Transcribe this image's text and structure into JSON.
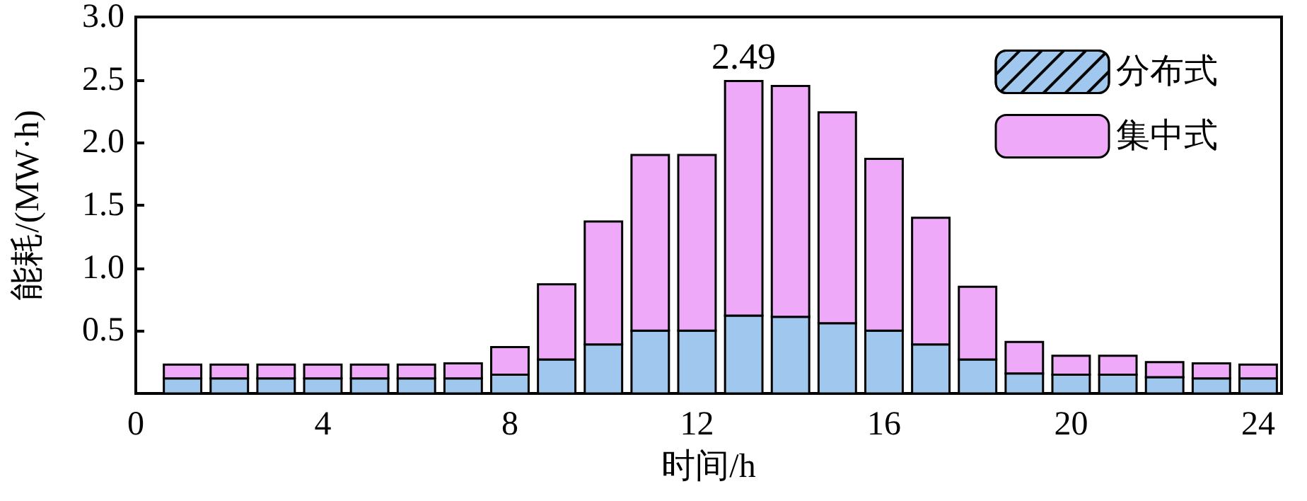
{
  "chart_data": {
    "type": "bar",
    "stacked": true,
    "xlabel": "时间/h",
    "ylabel": "能耗/(MW·h)",
    "x": [
      1,
      2,
      3,
      4,
      5,
      6,
      7,
      8,
      9,
      10,
      11,
      12,
      13,
      14,
      15,
      16,
      17,
      18,
      19,
      20,
      21,
      22,
      23,
      24
    ],
    "series": [
      {
        "name": "分布式",
        "color": "#a0c8ee",
        "values": [
          0.12,
          0.12,
          0.12,
          0.12,
          0.12,
          0.12,
          0.12,
          0.15,
          0.27,
          0.39,
          0.5,
          0.5,
          0.62,
          0.61,
          0.56,
          0.5,
          0.39,
          0.27,
          0.16,
          0.15,
          0.15,
          0.13,
          0.12,
          0.12
        ]
      },
      {
        "name": "集中式",
        "color": "#eeaaf8",
        "values": [
          0.11,
          0.11,
          0.11,
          0.11,
          0.11,
          0.11,
          0.12,
          0.22,
          0.6,
          0.98,
          1.4,
          1.4,
          1.87,
          1.84,
          1.68,
          1.37,
          1.01,
          0.58,
          0.25,
          0.15,
          0.15,
          0.12,
          0.12,
          0.11
        ]
      }
    ],
    "xlim": [
      0,
      24.5
    ],
    "xticks": [
      0,
      4,
      8,
      12,
      16,
      20,
      24
    ],
    "ylim": [
      0,
      3
    ],
    "yticks": [
      {
        "value": 0.5,
        "label": "0.5"
      },
      {
        "value": 1,
        "label": "1.0"
      },
      {
        "value": 1.5,
        "label": "1.5"
      },
      {
        "value": 2,
        "label": "2.0"
      },
      {
        "value": 2.5,
        "label": "2.5"
      },
      {
        "value": 3,
        "label": "3.0"
      }
    ],
    "annotations": [
      {
        "text": "2.49",
        "x": 13,
        "y": 2.49
      }
    ],
    "legend": "top right",
    "grid": false
  }
}
